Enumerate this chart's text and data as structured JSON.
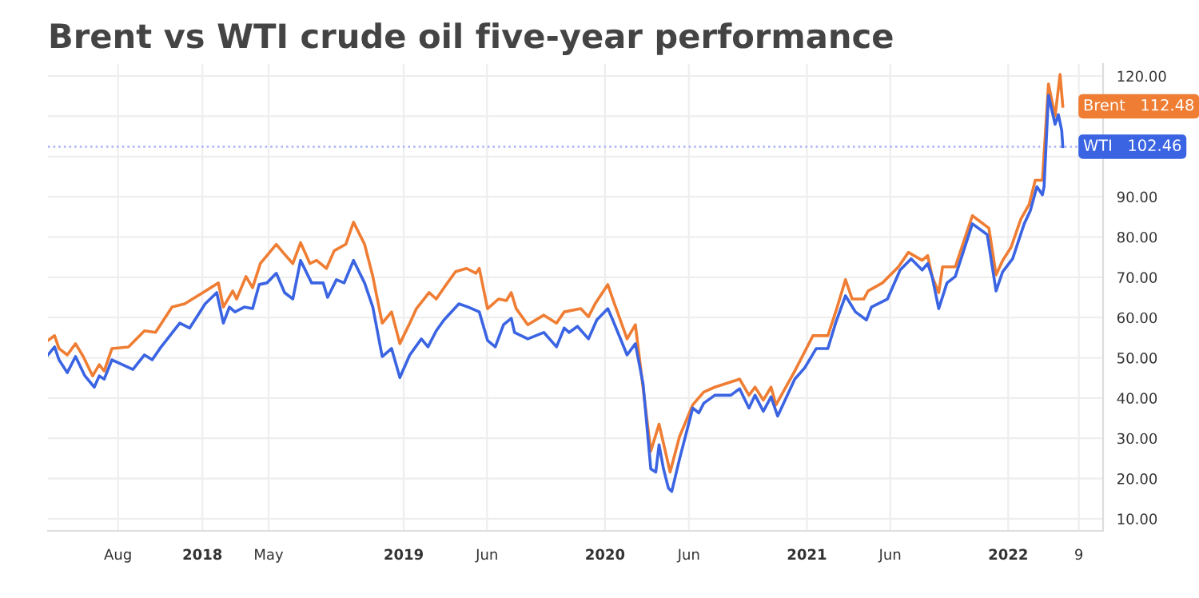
{
  "chart_data": {
    "type": "line",
    "title": "Brent vs WTI crude oil five-year performance",
    "series": [
      {
        "name": "Brent",
        "color": "#ef7d33",
        "x": [
          "2017-03-27",
          "2017-04-08",
          "2017-04-16",
          "2017-05-01",
          "2017-05-16",
          "2017-05-30",
          "2017-06-16",
          "2017-06-28",
          "2017-07-07",
          "2017-07-21",
          "2017-08-20",
          "2017-09-18",
          "2017-10-08",
          "2017-11-07",
          "2017-11-30",
          "2018-01-30",
          "2018-02-08",
          "2018-02-25",
          "2018-03-04",
          "2018-03-21",
          "2018-04-02",
          "2018-04-16",
          "2018-05-15",
          "2018-05-27",
          "2018-06-14",
          "2018-06-28",
          "2018-07-15",
          "2018-07-27",
          "2018-08-14",
          "2018-08-28",
          "2018-09-18",
          "2018-10-02",
          "2018-10-22",
          "2018-11-06",
          "2018-11-23",
          "2018-12-10",
          "2018-12-25",
          "2019-01-12",
          "2019-01-24",
          "2019-02-16",
          "2019-03-01",
          "2019-03-15",
          "2019-04-05",
          "2019-04-25",
          "2019-05-12",
          "2019-05-18",
          "2019-06-02",
          "2019-06-22",
          "2019-07-06",
          "2019-07-15",
          "2019-07-24",
          "2019-08-14",
          "2019-09-12",
          "2019-10-05",
          "2019-10-19",
          "2019-11-18",
          "2019-12-02",
          "2019-12-14",
          "2020-01-06",
          "2020-01-15",
          "2020-02-10",
          "2020-02-25",
          "2020-03-24",
          "2020-04-08",
          "2020-04-28",
          "2020-05-15",
          "2020-06-08",
          "2020-06-28",
          "2020-07-18",
          "2020-09-01",
          "2020-09-18",
          "2020-09-29",
          "2020-10-14",
          "2020-10-28",
          "2020-11-06",
          "2020-12-10",
          "2020-12-28",
          "2021-01-12",
          "2021-02-08",
          "2021-02-25",
          "2021-03-12",
          "2021-03-24",
          "2021-04-14",
          "2021-04-22",
          "2021-05-18",
          "2021-06-16",
          "2021-07-04",
          "2021-07-29",
          "2021-08-08",
          "2021-08-16",
          "2021-08-28",
          "2021-09-04",
          "2021-09-27",
          "2021-10-28",
          "2021-11-27",
          "2021-12-10",
          "2021-12-22",
          "2022-01-06",
          "2022-01-24",
          "2022-02-08",
          "2022-02-19",
          "2022-03-04",
          "2022-03-15",
          "2022-03-27",
          "2022-04-05",
          "2022-04-10"
        ],
        "values": [
          54.3,
          55.5,
          52.3,
          50.7,
          53.5,
          50.3,
          45.5,
          48.3,
          46.7,
          52.3,
          52.7,
          56.7,
          56.3,
          62.6,
          63.4,
          68.6,
          62.6,
          66.6,
          64.6,
          70.2,
          67.4,
          73.4,
          78.2,
          76.2,
          73.4,
          78.6,
          73.4,
          74.2,
          72.2,
          76.6,
          78.2,
          83.7,
          78.2,
          70.2,
          58.6,
          61.4,
          53.5,
          58.6,
          62.2,
          66.2,
          64.6,
          67.4,
          71.4,
          72.2,
          71.0,
          72.2,
          62.2,
          64.6,
          64.2,
          66.2,
          62.2,
          58.2,
          60.6,
          58.6,
          61.4,
          62.2,
          60.2,
          63.4,
          68.2,
          64.6,
          54.7,
          58.2,
          26.8,
          33.5,
          21.6,
          30.4,
          38.3,
          41.5,
          42.7,
          44.7,
          40.7,
          42.7,
          39.5,
          42.7,
          38.3,
          46.7,
          51.5,
          55.5,
          55.5,
          62.6,
          69.4,
          64.6,
          64.6,
          66.6,
          68.6,
          72.6,
          76.2,
          74.2,
          75.4,
          70.2,
          66.2,
          72.6,
          72.6,
          85.3,
          82.2,
          70.6,
          74.2,
          77.4,
          84.5,
          88.1,
          94.1,
          94.1,
          118.0,
          110.0,
          120.4,
          112.48
        ],
        "value_labels": [
          null,
          null,
          null,
          null,
          null,
          null,
          null,
          null,
          null,
          null,
          null,
          null,
          null,
          null,
          null,
          null,
          null,
          null,
          null,
          null,
          null,
          null,
          null,
          null,
          null,
          null,
          null,
          null,
          null,
          null,
          null,
          null,
          null,
          null,
          null,
          null,
          null,
          null,
          null,
          null,
          null,
          null,
          null,
          null,
          null,
          null,
          null,
          null,
          null,
          null,
          null,
          null,
          null,
          null,
          null,
          null,
          null,
          null,
          null,
          null,
          null,
          null,
          null,
          null,
          null,
          null,
          null,
          null,
          null,
          null,
          null,
          null,
          null,
          null,
          null,
          null,
          null,
          null,
          null,
          null,
          null,
          null,
          null,
          null,
          null,
          null,
          null,
          null,
          null,
          null,
          null,
          null,
          null,
          null,
          null,
          null,
          null,
          null,
          null,
          null,
          null,
          null,
          null,
          null,
          null,
          "112.48"
        ]
      },
      {
        "name": "WTI",
        "color": "#3b64e3",
        "x": [
          "2017-03-27",
          "2017-04-08",
          "2017-04-16",
          "2017-05-01",
          "2017-05-16",
          "2017-06-02",
          "2017-06-19",
          "2017-06-28",
          "2017-07-07",
          "2017-07-21",
          "2017-08-28",
          "2017-09-18",
          "2017-10-02",
          "2017-10-16",
          "2017-11-21",
          "2017-12-09",
          "2018-01-06",
          "2018-01-27",
          "2018-02-08",
          "2018-02-19",
          "2018-03-01",
          "2018-03-18",
          "2018-04-02",
          "2018-04-14",
          "2018-04-28",
          "2018-05-15",
          "2018-05-30",
          "2018-06-14",
          "2018-06-28",
          "2018-07-18",
          "2018-08-08",
          "2018-08-16",
          "2018-09-01",
          "2018-09-15",
          "2018-10-02",
          "2018-10-22",
          "2018-11-06",
          "2018-11-23",
          "2018-12-10",
          "2018-12-25",
          "2019-01-12",
          "2019-02-02",
          "2019-02-14",
          "2019-03-01",
          "2019-03-15",
          "2019-04-11",
          "2019-04-28",
          "2019-05-18",
          "2019-06-02",
          "2019-06-16",
          "2019-07-01",
          "2019-07-15",
          "2019-07-21",
          "2019-08-14",
          "2019-09-12",
          "2019-10-05",
          "2019-10-19",
          "2019-10-28",
          "2019-11-12",
          "2019-12-02",
          "2019-12-17",
          "2020-01-06",
          "2020-01-15",
          "2020-02-10",
          "2020-02-25",
          "2020-03-10",
          "2020-03-24",
          "2020-04-02",
          "2020-04-08",
          "2020-04-16",
          "2020-04-25",
          "2020-05-01",
          "2020-05-15",
          "2020-06-08",
          "2020-06-19",
          "2020-06-28",
          "2020-07-18",
          "2020-08-16",
          "2020-09-01",
          "2020-09-18",
          "2020-09-29",
          "2020-10-14",
          "2020-10-28",
          "2020-11-09",
          "2020-12-10",
          "2020-12-28",
          "2021-01-18",
          "2021-02-08",
          "2021-02-22",
          "2021-03-12",
          "2021-03-30",
          "2021-04-19",
          "2021-04-28",
          "2021-05-27",
          "2021-06-19",
          "2021-07-09",
          "2021-07-29",
          "2021-08-08",
          "2021-08-16",
          "2021-08-28",
          "2021-09-12",
          "2021-09-27",
          "2021-10-28",
          "2021-11-24",
          "2021-12-10",
          "2021-12-22",
          "2022-01-09",
          "2022-01-30",
          "2022-02-10",
          "2022-02-22",
          "2022-03-04",
          "2022-03-07",
          "2022-03-15",
          "2022-03-27",
          "2022-04-02",
          "2022-04-08",
          "2022-04-10"
        ],
        "values": [
          50.7,
          52.7,
          49.5,
          46.3,
          50.3,
          45.5,
          42.7,
          45.5,
          44.7,
          49.5,
          47.1,
          50.7,
          49.5,
          52.3,
          58.6,
          57.4,
          63.4,
          66.2,
          58.6,
          62.6,
          61.4,
          62.6,
          62.2,
          68.2,
          68.6,
          71.0,
          66.2,
          64.6,
          74.2,
          68.6,
          68.6,
          65.0,
          69.4,
          68.6,
          74.2,
          68.6,
          62.6,
          50.3,
          52.3,
          45.1,
          50.7,
          54.7,
          52.7,
          56.7,
          59.4,
          63.4,
          62.6,
          61.4,
          54.3,
          52.7,
          58.2,
          59.8,
          56.3,
          54.7,
          56.3,
          52.7,
          57.4,
          56.3,
          57.8,
          54.7,
          59.4,
          62.2,
          59.4,
          50.7,
          53.5,
          43.5,
          22.4,
          21.6,
          28.4,
          22.4,
          17.6,
          16.8,
          24.8,
          37.5,
          36.3,
          38.7,
          40.7,
          40.7,
          42.3,
          37.5,
          40.7,
          36.7,
          40.3,
          35.5,
          44.7,
          47.5,
          52.3,
          52.3,
          58.6,
          65.4,
          61.4,
          59.4,
          62.6,
          64.6,
          71.8,
          74.6,
          71.8,
          73.4,
          70.2,
          62.2,
          68.6,
          70.2,
          83.3,
          80.6,
          66.6,
          71.4,
          74.6,
          83.3,
          86.5,
          92.5,
          90.5,
          92.5,
          115.2,
          108.0,
          110.4,
          106.5,
          102.46
        ],
        "value_labels": [
          null,
          null,
          null,
          null,
          null,
          null,
          null,
          null,
          null,
          null,
          null,
          null,
          null,
          null,
          null,
          null,
          null,
          null,
          null,
          null,
          null,
          null,
          null,
          null,
          null,
          null,
          null,
          null,
          null,
          null,
          null,
          null,
          null,
          null,
          null,
          null,
          null,
          null,
          null,
          null,
          null,
          null,
          null,
          null,
          null,
          null,
          null,
          null,
          null,
          null,
          null,
          null,
          null,
          null,
          null,
          null,
          null,
          null,
          null,
          null,
          null,
          null,
          null,
          null,
          null,
          null,
          null,
          null,
          null,
          null,
          null,
          null,
          null,
          null,
          null,
          null,
          null,
          null,
          null,
          null,
          null,
          null,
          null,
          null,
          null,
          null,
          null,
          null,
          null,
          null,
          null,
          null,
          null,
          null,
          null,
          null,
          null,
          null,
          null,
          null,
          null,
          null,
          null,
          null,
          null,
          null,
          null,
          null,
          null,
          null,
          null,
          null,
          null,
          null,
          null,
          null,
          "102.46"
        ]
      }
    ],
    "xlim": [
      "2017-03-27",
      "2022-06-22"
    ],
    "xticks": [
      {
        "value": "2017-08-01",
        "label": "Aug"
      },
      {
        "value": "2018-01-01",
        "label": "2018"
      },
      {
        "value": "2018-05-01",
        "label": "May"
      },
      {
        "value": "2019-01-01",
        "label": "2019"
      },
      {
        "value": "2019-06-01",
        "label": "Jun"
      },
      {
        "value": "2020-01-01",
        "label": "2020"
      },
      {
        "value": "2020-06-01",
        "label": "Jun"
      },
      {
        "value": "2021-01-01",
        "label": "2021"
      },
      {
        "value": "2021-06-01",
        "label": "Jun"
      },
      {
        "value": "2022-01-01",
        "label": "2022"
      },
      {
        "value": "2022-05-09",
        "label": "9"
      }
    ],
    "ylim": [
      7,
      123
    ],
    "yticks": [
      {
        "value": 10,
        "label": "10.00"
      },
      {
        "value": 20,
        "label": "20.00"
      },
      {
        "value": 30,
        "label": "30.00"
      },
      {
        "value": 40,
        "label": "40.00"
      },
      {
        "value": 50,
        "label": "50.00"
      },
      {
        "value": 60,
        "label": "60.00"
      },
      {
        "value": 70,
        "label": "70.00"
      },
      {
        "value": 80,
        "label": "80.00"
      },
      {
        "value": 90,
        "label": "90.00"
      },
      {
        "value": 100,
        "label": null
      },
      {
        "value": 110,
        "label": null
      },
      {
        "value": 120,
        "label": "120.00"
      }
    ],
    "ref_lines": [
      {
        "axis": "y",
        "value": 102.46,
        "color": "#a9b2f5",
        "line_style": "dotted"
      }
    ],
    "grid": true,
    "legend": false,
    "marker": "none",
    "line_style": "solid"
  }
}
